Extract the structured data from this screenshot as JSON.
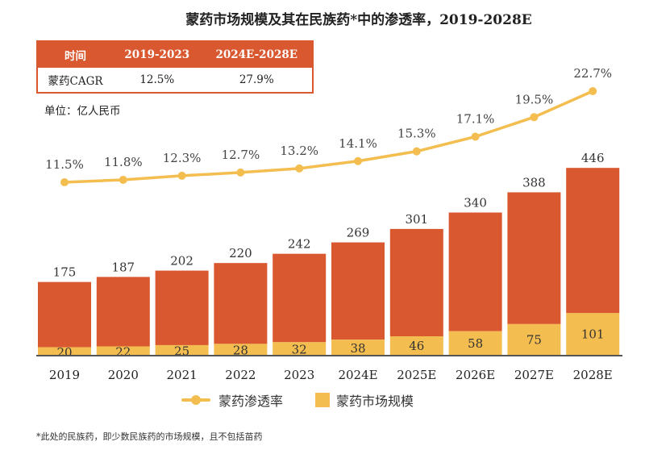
{
  "title": "蒙药市场规模及其在民族药*中的渗透率，2019-2028E",
  "cagr_table": {
    "headers": [
      "时间",
      "2019-2023",
      "2024E-2028E"
    ],
    "row": [
      "蒙药CAGR",
      "12.5%",
      "27.9%"
    ]
  },
  "unit": "单位：亿人民币",
  "footnote": "*此处的民族药，即少数民族药的市场规模，且不包括苗药",
  "colors": {
    "total_bar": "#d9582f",
    "mongolian_bar": "#f4bd4f",
    "line": "#f4bd4f",
    "table_header": "#d9582f"
  },
  "chart_data": {
    "type": "bar",
    "categories": [
      "2019",
      "2020",
      "2021",
      "2022",
      "2023",
      "2024E",
      "2025E",
      "2026E",
      "2027E",
      "2028E"
    ],
    "bar_totals": [
      175,
      187,
      202,
      220,
      242,
      269,
      301,
      340,
      388,
      446
    ],
    "series": [
      {
        "name": "蒙药市场规模",
        "type": "bar",
        "values": [
          20,
          22,
          25,
          28,
          32,
          38,
          46,
          58,
          75,
          101
        ]
      },
      {
        "name": "蒙药渗透率",
        "type": "line",
        "values": [
          11.5,
          11.8,
          12.3,
          12.7,
          13.2,
          14.1,
          15.3,
          17.1,
          19.5,
          22.7
        ],
        "labels": [
          "11.5%",
          "11.8%",
          "12.3%",
          "12.7%",
          "13.2%",
          "14.1%",
          "15.3%",
          "17.1%",
          "19.5%",
          "22.7%"
        ]
      }
    ],
    "legend": "bottom",
    "grid": false
  }
}
